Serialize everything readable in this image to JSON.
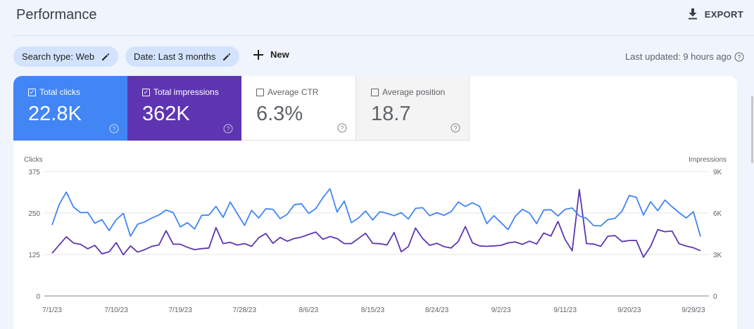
{
  "header": {
    "title": "Performance",
    "export_label": "EXPORT",
    "export_icon": "download-icon"
  },
  "filters": {
    "search_type": "Search type: Web",
    "date": "Date: Last 3 months",
    "new_label": "New",
    "edit_icon": "pencil-icon",
    "add_icon": "plus-icon"
  },
  "status": {
    "last_updated": "Last updated: 9 hours ago"
  },
  "metrics": [
    {
      "label": "Total clicks",
      "value": "22.8K",
      "checked": true,
      "color": "#4285f4"
    },
    {
      "label": "Total impressions",
      "value": "362K",
      "checked": true,
      "color": "#5e35b1"
    },
    {
      "label": "Average CTR",
      "value": "6.3%",
      "checked": false
    },
    {
      "label": "Average position",
      "value": "18.7",
      "checked": false
    }
  ],
  "chart_data": {
    "type": "line",
    "ylabel_left": "Clicks",
    "ylabel_right": "Impressions",
    "ylim_left": [
      0,
      375
    ],
    "ylim_right": [
      0,
      9000
    ],
    "yticks_left": [
      "0",
      "125",
      "250",
      "375"
    ],
    "yticks_right": [
      "0",
      "3K",
      "6K",
      "9K"
    ],
    "xticks": [
      "7/1/23",
      "7/10/23",
      "7/19/23",
      "7/28/23",
      "8/6/23",
      "8/15/23",
      "8/24/23",
      "9/2/23",
      "9/11/23",
      "9/20/23",
      "9/29/23"
    ],
    "x_range": [
      "7/1/23",
      "9/30/23"
    ],
    "grid": true,
    "series": [
      {
        "name": "Clicks",
        "axis": "left",
        "color": "#4285f4",
        "values": [
          214,
          276,
          313,
          268,
          251,
          252,
          219,
          230,
          197,
          230,
          249,
          180,
          216,
          223,
          235,
          244,
          259,
          251,
          208,
          221,
          202,
          243,
          244,
          270,
          237,
          283,
          248,
          213,
          258,
          235,
          263,
          261,
          233,
          246,
          275,
          278,
          249,
          263,
          296,
          323,
          253,
          286,
          221,
          235,
          256,
          229,
          254,
          249,
          242,
          251,
          232,
          264,
          266,
          242,
          251,
          243,
          254,
          283,
          270,
          281,
          270,
          218,
          242,
          221,
          200,
          240,
          261,
          250,
          218,
          259,
          260,
          241,
          261,
          265,
          241,
          234,
          212,
          211,
          230,
          234,
          256,
          303,
          297,
          244,
          284,
          257,
          289,
          269,
          251,
          235,
          254,
          179
        ]
      },
      {
        "name": "Impressions",
        "axis": "right",
        "color": "#5e35b1",
        "values": [
          3090,
          3690,
          4280,
          3830,
          3730,
          3410,
          3660,
          3050,
          3190,
          3860,
          2980,
          3620,
          3170,
          3350,
          3590,
          3690,
          4720,
          3740,
          3740,
          3520,
          3350,
          3420,
          3470,
          4940,
          3790,
          3880,
          3680,
          3790,
          3590,
          4210,
          4520,
          3810,
          4230,
          3960,
          4160,
          4260,
          4450,
          4620,
          4100,
          4300,
          4150,
          3790,
          3790,
          4160,
          4530,
          3810,
          3780,
          3690,
          4590,
          3200,
          3570,
          4910,
          4160,
          3660,
          3810,
          3570,
          3470,
          3940,
          5020,
          3840,
          3620,
          3590,
          3620,
          3660,
          3840,
          3910,
          3730,
          3960,
          3760,
          4550,
          4330,
          5390,
          4080,
          3270,
          7700,
          3790,
          3760,
          3590,
          4320,
          4370,
          3930,
          4010,
          4010,
          2800,
          3590,
          4800,
          4650,
          4700,
          3780,
          3610,
          3490,
          3270
        ]
      }
    ]
  }
}
